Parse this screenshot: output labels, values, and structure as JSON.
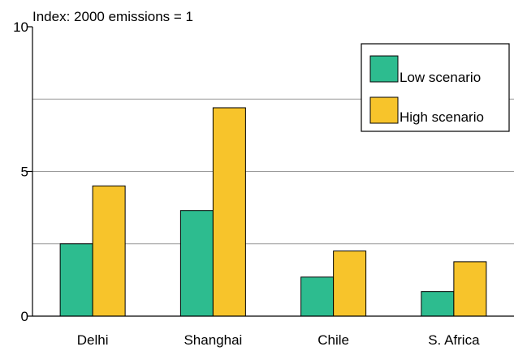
{
  "chart_data": {
    "type": "bar",
    "title": "",
    "ylabel": "Index: 2000 emissions = 1",
    "xlabel": "",
    "categories": [
      "Delhi",
      "Shanghai",
      "Chile",
      "S. Africa"
    ],
    "series": [
      {
        "name": "Low scenario",
        "values": [
          2.5,
          3.65,
          1.35,
          0.85
        ],
        "color": "#2dbc8f"
      },
      {
        "name": "High scenario",
        "values": [
          4.5,
          7.2,
          2.25,
          1.88
        ],
        "color": "#f7c42b"
      }
    ],
    "ylim": [
      0,
      10
    ],
    "y_ticks": [
      0,
      5,
      10
    ],
    "y_tick_labels": [
      "0",
      "5",
      "10"
    ],
    "gridlines": [
      2.5,
      5,
      7.5
    ],
    "grid": true,
    "legend_position": "top-right"
  }
}
